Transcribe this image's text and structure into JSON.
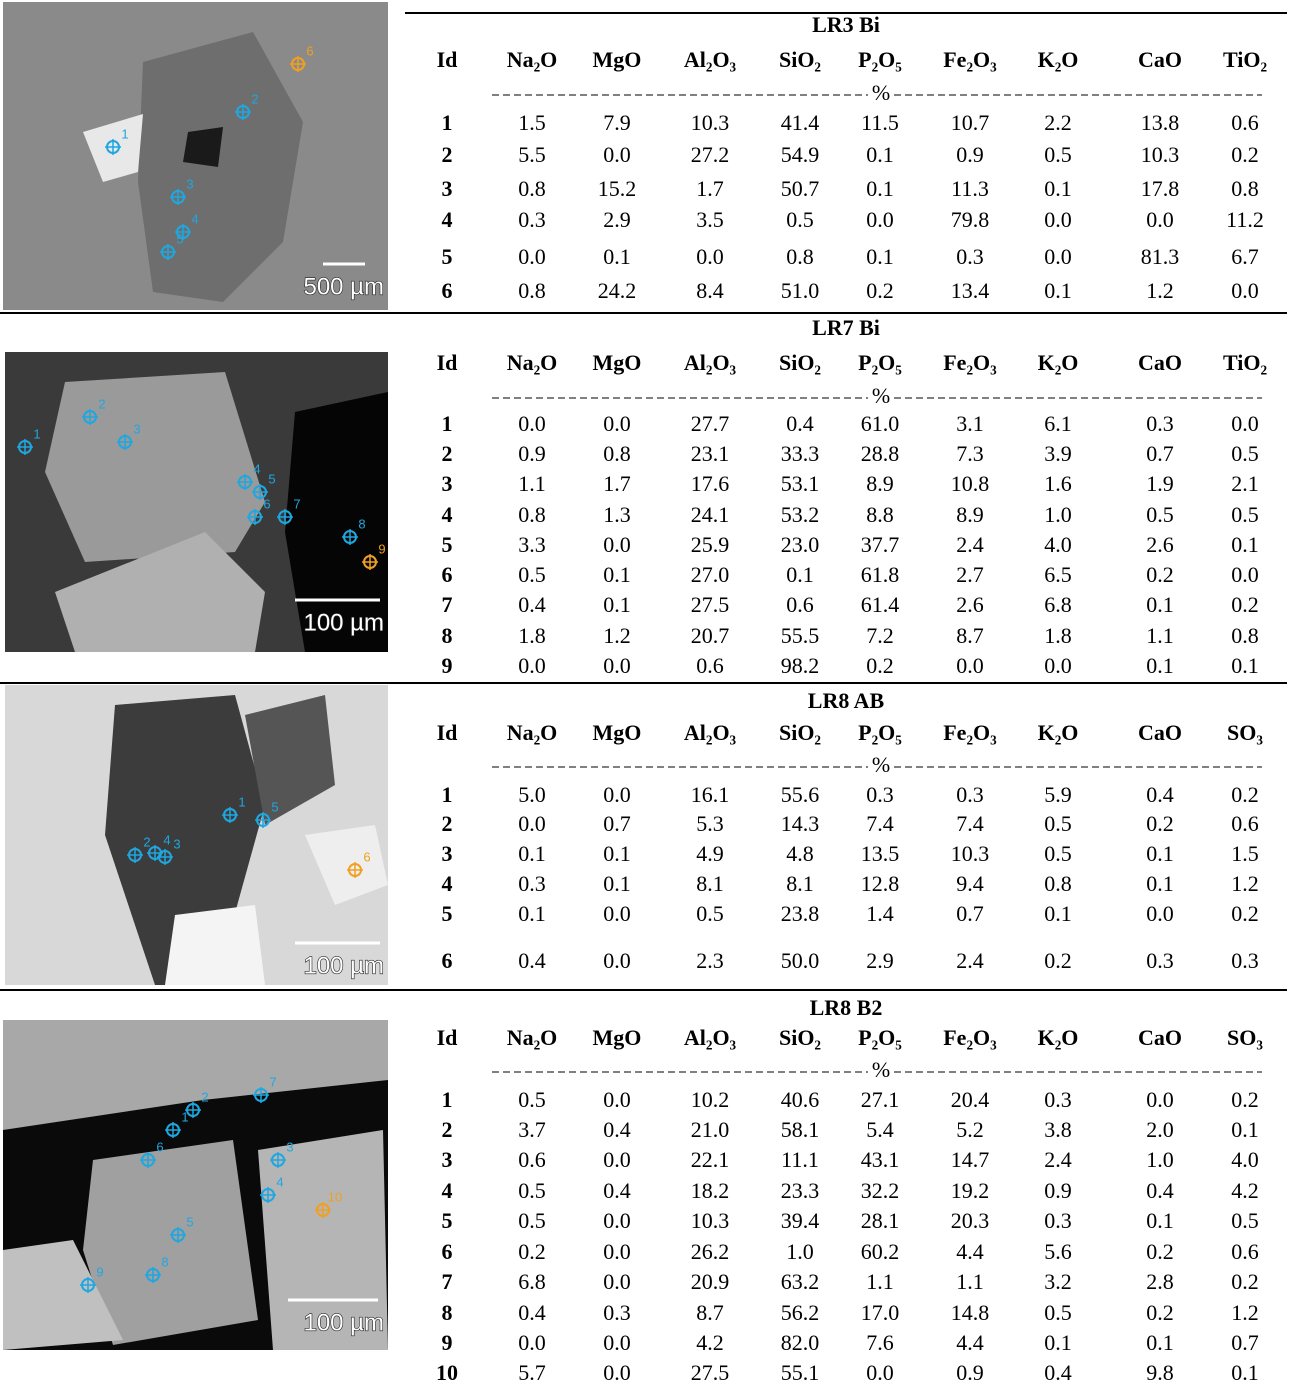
{
  "sections": [
    {
      "title": "LR3 Bi",
      "headers": [
        "Id",
        "Na₂O",
        "MgO",
        "Al₂O₃",
        "SiO₂",
        "P₂O₅",
        "Fe₂O₃",
        "K₂O",
        "CaO",
        "TiO₂"
      ],
      "unit": "%",
      "scale_bar": "500 µm",
      "rows": [
        [
          "1",
          "1.5",
          "7.9",
          "10.3",
          "41.4",
          "11.5",
          "10.7",
          "2.2",
          "13.8",
          "0.6"
        ],
        [
          "2",
          "5.5",
          "0.0",
          "27.2",
          "54.9",
          "0.1",
          "0.9",
          "0.5",
          "10.3",
          "0.2"
        ],
        [
          "3",
          "0.8",
          "15.2",
          "1.7",
          "50.7",
          "0.1",
          "11.3",
          "0.1",
          "17.8",
          "0.8"
        ],
        [
          "4",
          "0.3",
          "2.9",
          "3.5",
          "0.5",
          "0.0",
          "79.8",
          "0.0",
          "0.0",
          "11.2"
        ],
        [
          "5",
          "0.0",
          "0.1",
          "0.0",
          "0.8",
          "0.1",
          "0.3",
          "0.0",
          "81.3",
          "6.7"
        ],
        [
          "6",
          "0.8",
          "24.2",
          "8.4",
          "51.0",
          "0.2",
          "13.4",
          "0.1",
          "1.2",
          "0.0"
        ]
      ]
    },
    {
      "title": "LR7 Bi",
      "headers": [
        "Id",
        "Na₂O",
        "MgO",
        "Al₂O₃",
        "SiO₂",
        "P₂O₅",
        "Fe₂O₃",
        "K₂O",
        "CaO",
        "TiO₂"
      ],
      "unit": "%",
      "scale_bar": "100 µm",
      "rows": [
        [
          "1",
          "0.0",
          "0.0",
          "27.7",
          "0.4",
          "61.0",
          "3.1",
          "6.1",
          "0.3",
          "0.0"
        ],
        [
          "2",
          "0.9",
          "0.8",
          "23.1",
          "33.3",
          "28.8",
          "7.3",
          "3.9",
          "0.7",
          "0.5"
        ],
        [
          "3",
          "1.1",
          "1.7",
          "17.6",
          "53.1",
          "8.9",
          "10.8",
          "1.6",
          "1.9",
          "2.1"
        ],
        [
          "4",
          "0.8",
          "1.3",
          "24.1",
          "53.2",
          "8.8",
          "8.9",
          "1.0",
          "0.5",
          "0.5"
        ],
        [
          "5",
          "3.3",
          "0.0",
          "25.9",
          "23.0",
          "37.7",
          "2.4",
          "4.0",
          "2.6",
          "0.1"
        ],
        [
          "6",
          "0.5",
          "0.1",
          "27.0",
          "0.1",
          "61.8",
          "2.7",
          "6.5",
          "0.2",
          "0.0"
        ],
        [
          "7",
          "0.4",
          "0.1",
          "27.5",
          "0.6",
          "61.4",
          "2.6",
          "6.8",
          "0.1",
          "0.2"
        ],
        [
          "8",
          "1.8",
          "1.2",
          "20.7",
          "55.5",
          "7.2",
          "8.7",
          "1.8",
          "1.1",
          "0.8"
        ],
        [
          "9",
          "0.0",
          "0.0",
          "0.6",
          "98.2",
          "0.2",
          "0.0",
          "0.0",
          "0.1",
          "0.1"
        ]
      ]
    },
    {
      "title": "LR8 AB",
      "headers": [
        "Id",
        "Na₂O",
        "MgO",
        "Al₂O₃",
        "SiO₂",
        "P₂O₅",
        "Fe₂O₃",
        "K₂O",
        "CaO",
        "SO₃"
      ],
      "unit": "%",
      "scale_bar": "100 µm",
      "rows": [
        [
          "1",
          "5.0",
          "0.0",
          "16.1",
          "55.6",
          "0.3",
          "0.3",
          "5.9",
          "0.4",
          "0.2"
        ],
        [
          "2",
          "0.0",
          "0.7",
          "5.3",
          "14.3",
          "7.4",
          "7.4",
          "0.5",
          "0.2",
          "0.6"
        ],
        [
          "3",
          "0.1",
          "0.1",
          "4.9",
          "4.8",
          "13.5",
          "10.3",
          "0.5",
          "0.1",
          "1.5"
        ],
        [
          "4",
          "0.3",
          "0.1",
          "8.1",
          "8.1",
          "12.8",
          "9.4",
          "0.8",
          "0.1",
          "1.2"
        ],
        [
          "5",
          "0.1",
          "0.0",
          "0.5",
          "23.8",
          "1.4",
          "0.7",
          "0.1",
          "0.0",
          "0.2"
        ],
        [
          "6",
          "0.4",
          "0.0",
          "2.3",
          "50.0",
          "2.9",
          "2.4",
          "0.2",
          "0.3",
          "0.3"
        ]
      ]
    },
    {
      "title": "LR8 B2",
      "headers": [
        "Id",
        "Na₂O",
        "MgO",
        "Al₂O₃",
        "SiO₂",
        "P₂O₅",
        "Fe₂O₃",
        "K₂O",
        "CaO",
        "SO₃"
      ],
      "unit": "%",
      "scale_bar": "100 µm",
      "rows": [
        [
          "1",
          "0.5",
          "0.0",
          "10.2",
          "40.6",
          "27.1",
          "20.4",
          "0.3",
          "0.0",
          "0.2"
        ],
        [
          "2",
          "3.7",
          "0.4",
          "21.0",
          "58.1",
          "5.4",
          "5.2",
          "3.8",
          "2.0",
          "0.1"
        ],
        [
          "3",
          "0.6",
          "0.0",
          "22.1",
          "11.1",
          "43.1",
          "14.7",
          "2.4",
          "1.0",
          "4.0"
        ],
        [
          "4",
          "0.5",
          "0.4",
          "18.2",
          "23.3",
          "32.2",
          "19.2",
          "0.9",
          "0.4",
          "4.2"
        ],
        [
          "5",
          "0.5",
          "0.0",
          "10.3",
          "39.4",
          "28.1",
          "20.3",
          "0.3",
          "0.1",
          "0.5"
        ],
        [
          "6",
          "0.2",
          "0.0",
          "26.2",
          "1.0",
          "60.2",
          "4.4",
          "5.6",
          "0.2",
          "0.6"
        ],
        [
          "7",
          "6.8",
          "0.0",
          "20.9",
          "63.2",
          "1.1",
          "1.1",
          "3.2",
          "2.8",
          "0.2"
        ],
        [
          "8",
          "0.4",
          "0.3",
          "8.7",
          "56.2",
          "17.0",
          "14.8",
          "0.5",
          "0.2",
          "1.2"
        ],
        [
          "9",
          "0.0",
          "0.0",
          "4.2",
          "82.0",
          "7.6",
          "4.4",
          "0.1",
          "0.1",
          "0.7"
        ],
        [
          "10",
          "5.7",
          "0.0",
          "27.5",
          "55.1",
          "0.0",
          "0.9",
          "0.4",
          "9.8",
          "0.1"
        ]
      ]
    }
  ]
}
